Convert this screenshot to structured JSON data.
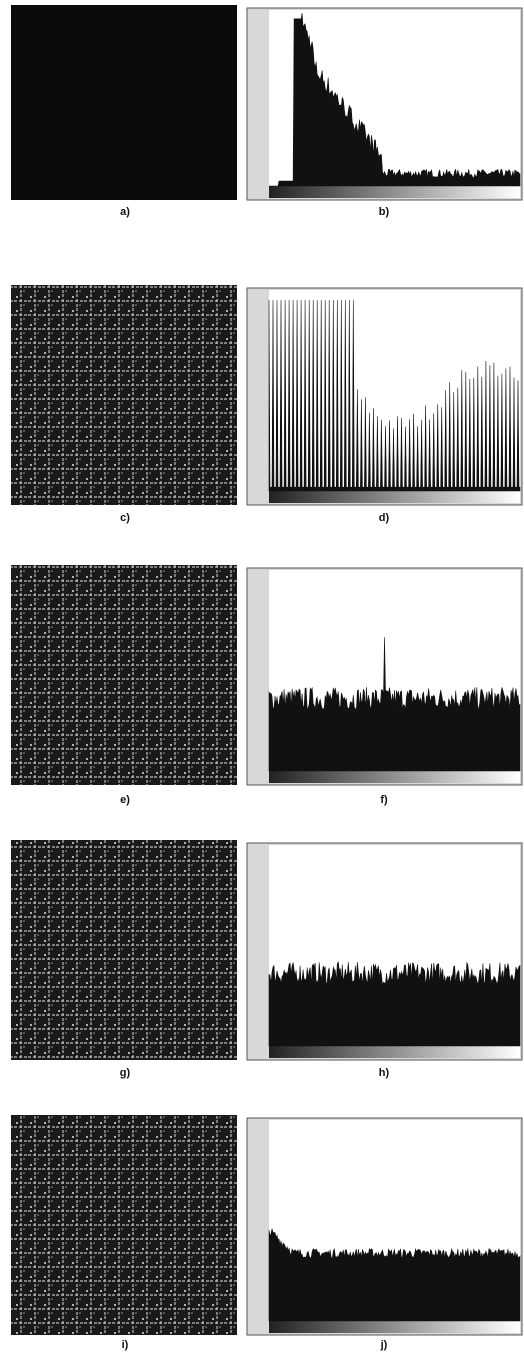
{
  "panels": [
    {
      "image_label": "a)",
      "histogram_label": "b)"
    },
    {
      "image_label": "c)",
      "histogram_label": "d)"
    },
    {
      "image_label": "e)",
      "histogram_label": "f)"
    },
    {
      "image_label": "g)",
      "histogram_label": "h)"
    },
    {
      "image_label": "i)",
      "histogram_label": "j)"
    }
  ]
}
